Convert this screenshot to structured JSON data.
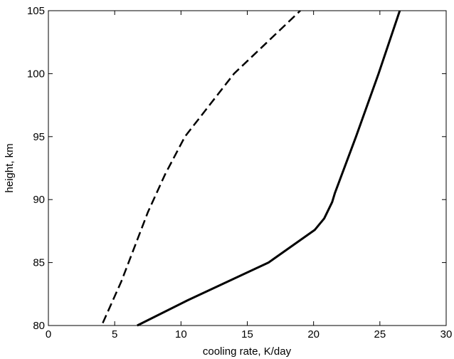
{
  "chart_data": {
    "type": "line",
    "title": "",
    "xlabel": "cooling rate, K/day",
    "ylabel": "height, km",
    "xlim": [
      0,
      30
    ],
    "ylim": [
      80,
      105
    ],
    "xticks": [
      0,
      5,
      10,
      15,
      20,
      25,
      30
    ],
    "yticks": [
      80,
      85,
      90,
      95,
      100,
      105
    ],
    "grid": false,
    "legend": "none",
    "series": [
      {
        "style": "solid",
        "color": "#000000",
        "points": [
          [
            6.7,
            80
          ],
          [
            10.5,
            82
          ],
          [
            16.6,
            85
          ],
          [
            20.1,
            87.6
          ],
          [
            20.8,
            88.5
          ],
          [
            21.4,
            89.8
          ],
          [
            21.6,
            90.5
          ],
          [
            23.2,
            95
          ],
          [
            24.9,
            100
          ],
          [
            26.5,
            105
          ]
        ]
      },
      {
        "style": "dashed",
        "color": "#000000",
        "points": [
          [
            4.1,
            80.2
          ],
          [
            5.5,
            83.5
          ],
          [
            7.5,
            89
          ],
          [
            8.8,
            92
          ],
          [
            10.3,
            95
          ],
          [
            14.0,
            100
          ],
          [
            17.5,
            103.5
          ],
          [
            19.0,
            105
          ]
        ]
      }
    ]
  }
}
